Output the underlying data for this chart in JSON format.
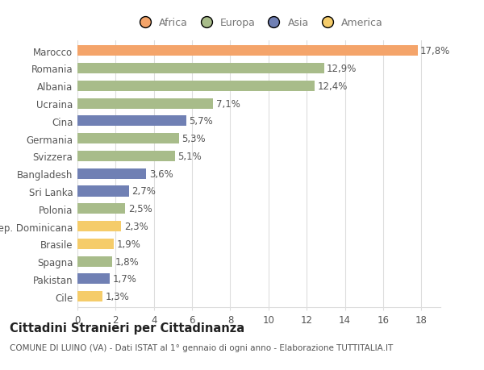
{
  "categories": [
    "Marocco",
    "Romania",
    "Albania",
    "Ucraina",
    "Cina",
    "Germania",
    "Svizzera",
    "Bangladesh",
    "Sri Lanka",
    "Polonia",
    "Rep. Dominicana",
    "Brasile",
    "Spagna",
    "Pakistan",
    "Cile"
  ],
  "values": [
    17.8,
    12.9,
    12.4,
    7.1,
    5.7,
    5.3,
    5.1,
    3.6,
    2.7,
    2.5,
    2.3,
    1.9,
    1.8,
    1.7,
    1.3
  ],
  "labels": [
    "17,8%",
    "12,9%",
    "12,4%",
    "7,1%",
    "5,7%",
    "5,3%",
    "5,1%",
    "3,6%",
    "2,7%",
    "2,5%",
    "2,3%",
    "1,9%",
    "1,8%",
    "1,7%",
    "1,3%"
  ],
  "colors": [
    "#F4A46A",
    "#A8BC8A",
    "#A8BC8A",
    "#A8BC8A",
    "#7080B4",
    "#A8BC8A",
    "#A8BC8A",
    "#7080B4",
    "#7080B4",
    "#A8BC8A",
    "#F5CC6A",
    "#F5CC6A",
    "#A8BC8A",
    "#7080B4",
    "#F5CC6A"
  ],
  "legend_order": [
    "Africa",
    "Europa",
    "Asia",
    "America"
  ],
  "legend_colors": {
    "Africa": "#F4A46A",
    "Europa": "#A8BC8A",
    "Asia": "#7080B4",
    "America": "#F5CC6A"
  },
  "xlim": [
    0,
    19
  ],
  "xticks": [
    0,
    2,
    4,
    6,
    8,
    10,
    12,
    14,
    16,
    18
  ],
  "title": "Cittadini Stranieri per Cittadinanza",
  "subtitle": "COMUNE DI LUINO (VA) - Dati ISTAT al 1° gennaio di ogni anno - Elaborazione TUTTITALIA.IT",
  "bg_color": "#ffffff",
  "grid_color": "#dddddd",
  "bar_height": 0.6,
  "label_fontsize": 8.5,
  "tick_fontsize": 8.5,
  "legend_fontsize": 9,
  "title_fontsize": 10.5,
  "subtitle_fontsize": 7.5
}
